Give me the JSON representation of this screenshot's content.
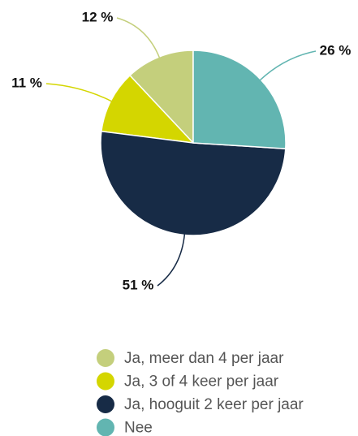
{
  "chart_data": {
    "type": "pie",
    "categories": [
      "Ja, meer dan 4 per jaar",
      "Ja, 3 of 4 keer per jaar",
      "Ja, hooguit 2 keer per jaar",
      "Nee"
    ],
    "values": [
      12,
      11,
      51,
      26
    ],
    "value_labels": [
      "12 %",
      "11 %",
      "51 %",
      "26 %"
    ],
    "colors": [
      "#c4cf7c",
      "#d4d600",
      "#172b46",
      "#62b5b1"
    ],
    "legend": "bottom"
  }
}
